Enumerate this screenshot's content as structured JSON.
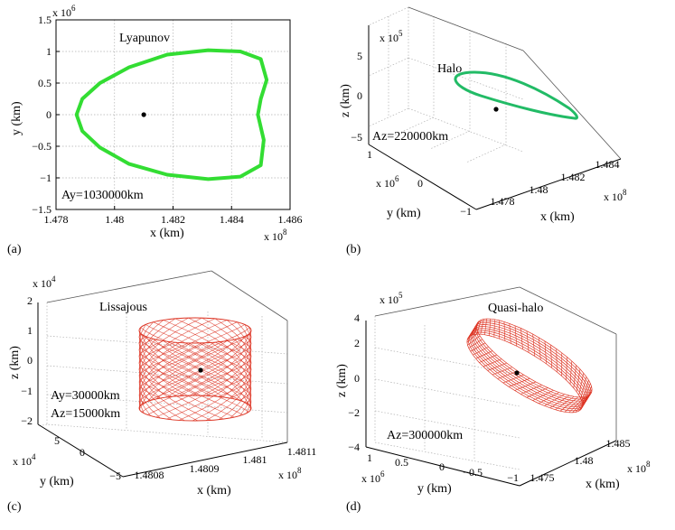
{
  "chart_data": [
    {
      "panel": "(a)",
      "type": "line",
      "annotation_title": "Lyapunov",
      "annotation": "Ay=1030000km",
      "xlabel": "x (km)",
      "ylabel": "y (km)",
      "x_exponent": "x 10",
      "x_exponent_power": "8",
      "y_exponent": "x 10",
      "y_exponent_power": "6",
      "xlim": [
        1.478,
        1.486
      ],
      "ylim": [
        -1.5,
        1.5
      ],
      "x_ticks": [
        "1.478",
        "1.48",
        "1.482",
        "1.484",
        "1.486"
      ],
      "y_ticks": [
        "1.5",
        "1",
        "0.5",
        "0",
        "−0.5",
        "−1",
        "−1.5"
      ],
      "grid": true,
      "color": "#33dd33",
      "center_point": {
        "x": 1.481,
        "y": 0.0
      },
      "series": [
        {
          "x": [
            1.4787,
            1.4789,
            1.4795,
            1.4805,
            1.4818,
            1.4832,
            1.4843,
            1.485,
            1.4852,
            1.485,
            1.4849,
            1.4851,
            1.485,
            1.4843,
            1.4832,
            1.4818,
            1.4805,
            1.4795,
            1.4789,
            1.4787
          ],
          "y": [
            0.0,
            0.25,
            0.5,
            0.75,
            0.95,
            1.02,
            1.0,
            0.88,
            0.55,
            0.25,
            0.0,
            -0.4,
            -0.8,
            -0.98,
            -1.02,
            -0.95,
            -0.78,
            -0.52,
            -0.26,
            0.0
          ]
        }
      ]
    },
    {
      "panel": "(b)",
      "type": "line",
      "annotation_title": "Halo",
      "annotation": "Az=220000km",
      "xlabel": "x (km)",
      "ylabel": "y (km)",
      "zlabel": "z (km)",
      "x_exponent": "x 10",
      "x_exponent_power": "8",
      "y_exponent": "x 10",
      "y_exponent_power": "6",
      "z_exponent": "x 10",
      "z_exponent_power": "5",
      "x_ticks": [
        "1.478",
        "1.48",
        "1.482",
        "1.484"
      ],
      "y_ticks": [
        "1",
        "0",
        "−1"
      ],
      "z_ticks": [
        "5",
        "0",
        "−5"
      ],
      "color": "#22bb66"
    },
    {
      "panel": "(c)",
      "type": "line",
      "annotation_title": "Lissajous",
      "annotation": "Ay=30000km",
      "annotation2": "Az=15000km",
      "xlabel": "x (km)",
      "ylabel": "y (km)",
      "zlabel": "z (km)",
      "x_exponent": "x 10",
      "x_exponent_power": "8",
      "y_exponent": "x 10",
      "y_exponent_power": "4",
      "z_exponent": "x 10",
      "z_exponent_power": "4",
      "x_ticks": [
        "1.4808",
        "1.4809",
        "1.481",
        "1.4811"
      ],
      "y_ticks": [
        "5",
        "0",
        "−5"
      ],
      "z_ticks": [
        "2",
        "1",
        "0",
        "−1",
        "−2"
      ],
      "color": "#dd3322"
    },
    {
      "panel": "(d)",
      "type": "line",
      "annotation_title": "Quasi-halo",
      "annotation": "Az=300000km",
      "xlabel": "x (km)",
      "ylabel": "y (km)",
      "zlabel": "z (km)",
      "x_exponent": "x 10",
      "x_exponent_power": "8",
      "y_exponent": "x 10",
      "y_exponent_power": "6",
      "z_exponent": "x 10",
      "z_exponent_power": "5",
      "x_ticks": [
        "1.475",
        "1.48",
        "1.485"
      ],
      "y_ticks": [
        "1",
        "0.5",
        "0",
        "−0.5",
        "−1"
      ],
      "z_ticks": [
        "4",
        "2",
        "0",
        "−2",
        "−4"
      ],
      "color": "#dd3322"
    }
  ]
}
